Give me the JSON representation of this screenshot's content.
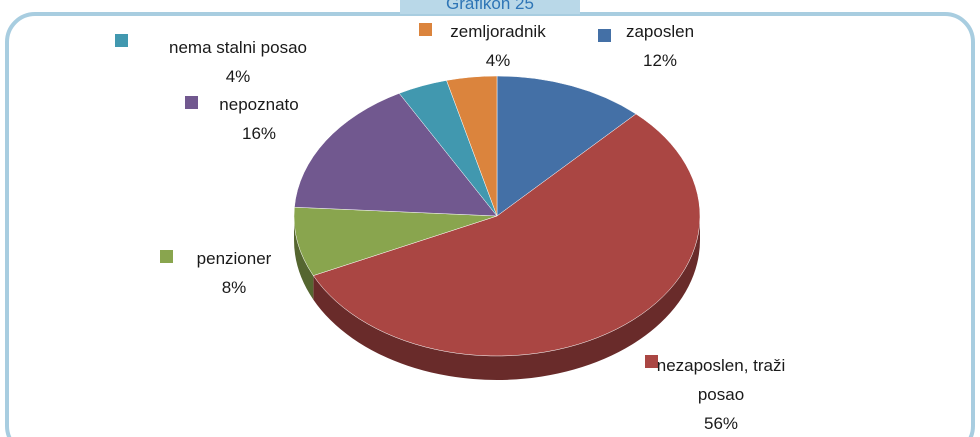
{
  "chart_data": {
    "type": "pie",
    "title": "Grafikon 25",
    "categories": [
      "zaposlen",
      "nezaposlen, traži posao",
      "penzioner",
      "nepoznato",
      "nema stalni posao",
      "zemljoradnik"
    ],
    "values": [
      12,
      56,
      8,
      16,
      4,
      4
    ],
    "value_labels": [
      "12%",
      "56%",
      "8%",
      "16%",
      "4%",
      "4%"
    ],
    "colors": [
      "#4470a6",
      "#aa4643",
      "#89a54e",
      "#71588f",
      "#4198af",
      "#db843d"
    ]
  }
}
